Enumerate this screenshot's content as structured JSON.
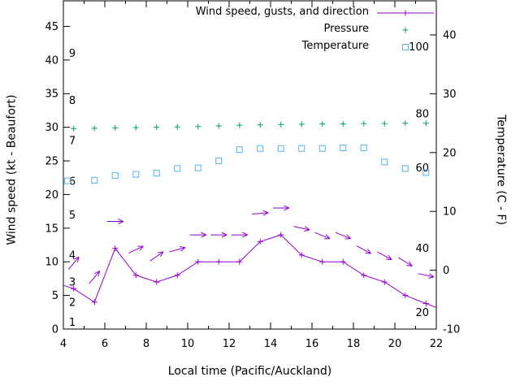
{
  "chart_data": {
    "type": "line",
    "title": "",
    "xlabel": "Local time (Pacific/Auckland)",
    "ylabel_left": "Wind speed (kt - Beaufort)",
    "ylabel_right": "Temperature (C - F)",
    "xlim": [
      4,
      22
    ],
    "ylim_left": [
      0,
      48.8
    ],
    "ylim_right": [
      -10,
      45.8
    ],
    "grid": false,
    "legend_position": "top-right",
    "x_major_ticks": [
      4,
      6,
      8,
      10,
      12,
      14,
      16,
      18,
      20,
      22
    ],
    "x_minor_ticks": [
      5,
      7,
      9,
      11,
      13,
      15,
      17,
      19,
      21
    ],
    "y_ticks_left": [
      0,
      5,
      10,
      15,
      20,
      25,
      30,
      35,
      40,
      45
    ],
    "y_ticks_right": [
      -10,
      0,
      10,
      20,
      30,
      40
    ],
    "beaufort_labels": [
      {
        "text": "1",
        "kt": 1
      },
      {
        "text": "2",
        "kt": 4
      },
      {
        "text": "3",
        "kt": 7
      },
      {
        "text": "4",
        "kt": 11
      },
      {
        "text": "5",
        "kt": 17
      },
      {
        "text": "6",
        "kt": 22
      },
      {
        "text": "7",
        "kt": 28
      },
      {
        "text": "8",
        "kt": 34
      },
      {
        "text": "9",
        "kt": 41
      }
    ],
    "right_inner_labels": [
      {
        "text": "100",
        "kt": 42
      },
      {
        "text": "80",
        "kt": 32
      },
      {
        "text": "60",
        "kt": 24
      },
      {
        "text": "40",
        "kt": 12
      },
      {
        "text": "20",
        "kt": 2.5
      }
    ],
    "legend": [
      {
        "label": "Wind speed, gusts, and direction",
        "marker": "line-plus",
        "color": "#9400d3"
      },
      {
        "label": "Pressure",
        "marker": "plus",
        "color": "#009e73"
      },
      {
        "label": "Temperature",
        "marker": "square",
        "color": "#56b4e9"
      }
    ],
    "series": [
      {
        "name": "wind_speed",
        "axis": "left",
        "style": "line-plus",
        "color": "#9400d3",
        "x": [
          4,
          4.5,
          5.5,
          6.5,
          7.5,
          8.5,
          9.5,
          10.5,
          11.5,
          12.5,
          13.5,
          14.5,
          15.5,
          16.5,
          17.5,
          18.5,
          19.5,
          20.5,
          21.5,
          22
        ],
        "y": [
          6.5,
          6,
          4,
          12,
          8,
          7,
          8,
          10,
          10,
          10,
          13,
          14,
          11,
          10,
          10,
          8,
          7,
          5,
          3.8,
          3.2
        ]
      },
      {
        "name": "wind_gust_direction",
        "axis": "left",
        "style": "arrows",
        "color": "#9400d3",
        "arrows": [
          [
            4.5,
            9.8,
            50
          ],
          [
            5.5,
            7.7,
            50
          ],
          [
            6.5,
            16,
            0
          ],
          [
            7.5,
            11.8,
            25
          ],
          [
            8.5,
            10.8,
            35
          ],
          [
            9.5,
            11.8,
            15
          ],
          [
            10.5,
            14,
            0
          ],
          [
            11.5,
            14,
            0
          ],
          [
            12.5,
            14,
            0
          ],
          [
            13.5,
            17.2,
            5
          ],
          [
            14.5,
            18,
            0
          ],
          [
            15.5,
            15,
            -12
          ],
          [
            16.5,
            13.9,
            -22
          ],
          [
            17.5,
            13.9,
            -22
          ],
          [
            18.5,
            11.8,
            -28
          ],
          [
            19.5,
            10.9,
            -28
          ],
          [
            20.5,
            10,
            -32
          ],
          [
            21.5,
            8,
            -12
          ]
        ]
      },
      {
        "name": "pressure",
        "axis": "left",
        "style": "plus",
        "color": "#009e73",
        "x": [
          4.5,
          5.5,
          6.5,
          7.5,
          8.5,
          9.5,
          10.5,
          11.5,
          12.5,
          13.5,
          14.5,
          15.5,
          16.5,
          17.5,
          18.5,
          19.5,
          20.5,
          21.5
        ],
        "y": [
          29.8,
          29.85,
          29.9,
          29.95,
          30,
          30.05,
          30.1,
          30.2,
          30.3,
          30.35,
          30.4,
          30.45,
          30.5,
          30.5,
          30.55,
          30.55,
          30.6,
          30.6
        ]
      },
      {
        "name": "temperature",
        "axis": "right",
        "style": "square",
        "color": "#56b4e9",
        "x": [
          4.2,
          5.5,
          6.5,
          7.5,
          8.5,
          9.5,
          10.5,
          11.5,
          12.5,
          13.5,
          14.5,
          15.5,
          16.5,
          17.5,
          18.5,
          19.5,
          20.5,
          21.5
        ],
        "y": [
          15.2,
          15.3,
          16.1,
          16.3,
          16.5,
          17.3,
          17.4,
          18.6,
          20.5,
          20.7,
          20.7,
          20.7,
          20.7,
          20.8,
          20.8,
          18.4,
          17.3,
          16.6
        ]
      }
    ]
  }
}
